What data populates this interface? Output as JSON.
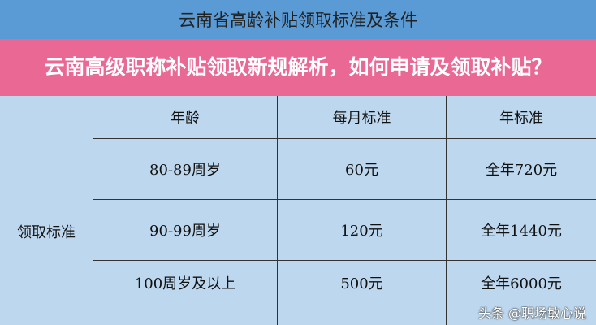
{
  "title": "云南省高龄补贴领取标准及条件",
  "table": {
    "row_label": "领取标准",
    "headers": [
      "年龄",
      "每月标准",
      "年标准"
    ],
    "rows": [
      [
        "80-89周岁",
        "60元",
        "全年720元"
      ],
      [
        "90-99周岁",
        "120元",
        "全年1440元"
      ],
      [
        "100周岁及以上",
        "500元",
        "全年6000元"
      ]
    ]
  },
  "banner": {
    "text": "云南高级职称补贴领取新规解析，如何申请及领取补贴？"
  },
  "watermark": "头条 @职场敏心说",
  "colors": {
    "header": "#5b9bd5",
    "cell": "#bdd7ee",
    "banner": "#ee608c"
  }
}
